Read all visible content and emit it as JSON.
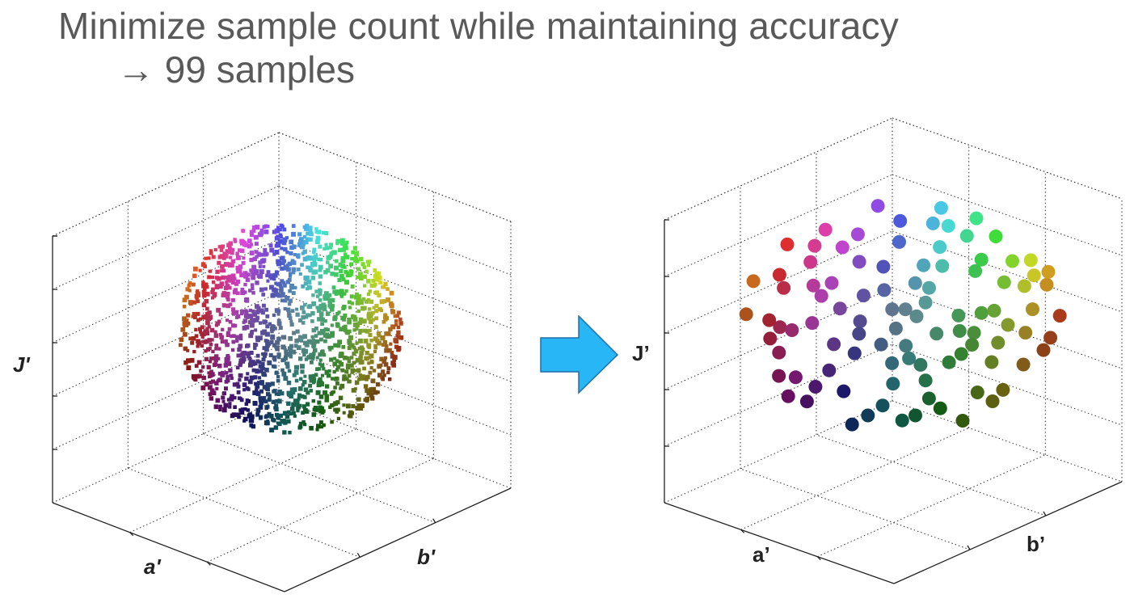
{
  "slide": {
    "title": "Minimize sample count while maintaining accuracy",
    "subtitle": "→ 99 samples"
  },
  "arrow": {
    "icon": "right-arrow-icon",
    "fill_color": "#29B6F6",
    "stroke_color": "#1F6FA8"
  },
  "left_plot": {
    "type": "scatter3d",
    "description_marker": "small square",
    "axes": {
      "vertical": "J'",
      "left_depth": "a'",
      "right_depth": "b'"
    },
    "grid": true,
    "sample_count_label": ""
  },
  "right_plot": {
    "type": "scatter3d",
    "description_marker": "large dot",
    "axes": {
      "vertical": "J’",
      "left_depth": "a’",
      "right_depth": "b’"
    },
    "grid": true
  }
}
